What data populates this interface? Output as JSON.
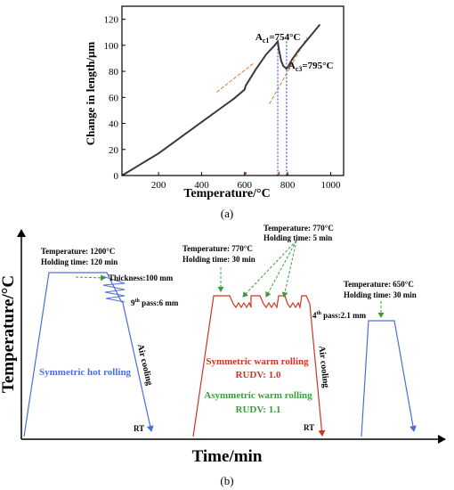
{
  "panel_a": {
    "label": "(a)",
    "chart_data": {
      "type": "line",
      "xlabel": "Temperature/°C",
      "ylabel": "Change in length/μm",
      "xlim": [
        30,
        1060
      ],
      "ylim": [
        0,
        130
      ],
      "xticks": [
        200,
        400,
        600,
        800,
        1000
      ],
      "yticks": [
        0,
        20,
        40,
        60,
        80,
        100,
        120
      ],
      "grid": false,
      "series": [
        {
          "x": [
            30,
            60,
            100,
            150,
            200,
            250,
            300,
            350,
            400,
            450,
            500,
            550,
            600,
            605,
            650,
            700,
            740,
            754,
            760,
            770,
            780,
            795,
            800,
            820,
            850,
            900,
            950
          ],
          "y": [
            0,
            3,
            7,
            12,
            17,
            23,
            29,
            35,
            41,
            47,
            53,
            59,
            66,
            69,
            81,
            93,
            100,
            103,
            96,
            88,
            84,
            82,
            83,
            89,
            96,
            106,
            116
          ]
        }
      ],
      "tangent_lines": [
        {
          "x": [
            470,
            640
          ],
          "y": [
            64,
            86
          ]
        },
        {
          "x": [
            715,
            890
          ],
          "y": [
            55,
            106
          ]
        }
      ],
      "vertical_markers": [
        754,
        795
      ],
      "red_marker_x": [
        605,
        760
      ],
      "annotations": [
        {
          "base": "A",
          "sub": "c1",
          "rest": "=754°C",
          "x": 650,
          "y": 104
        },
        {
          "base": "A",
          "sub": "c3",
          "rest": "=795°C",
          "x": 803,
          "y": 82
        }
      ]
    }
  },
  "panel_b": {
    "label": "(b)",
    "y_axis_label": "Temperature/°C",
    "x_axis_label": "Time/min",
    "hot": {
      "temp_line1": "Temperature: 1200°C",
      "temp_line2": "Holding time: 120 min",
      "thickness": "Thickness:100 mm",
      "pass_pre": "9",
      "pass_sup": "th",
      "pass_post": " pass:6 mm",
      "cooling": "Air cooling",
      "mode": "Symmetric hot rolling",
      "rt": "RT"
    },
    "warm": {
      "a_line1": "Temperature: 770°C",
      "a_line2": "Holding time: 30 min",
      "b_line1": "Temperature: 770°C",
      "b_line2": "Holding time: 5 min",
      "pass_pre": "4",
      "pass_sup": "th",
      "pass_post": " pass:2.1 mm",
      "cooling": "Air cooling",
      "sym_mode": "Symmetric warm rolling",
      "sym_rudv": "RUDV: 1.0",
      "asym_mode": "Asymmetric warm rolling",
      "asym_rudv": "RUDV: 1.1",
      "rt": "RT"
    },
    "anneal": {
      "line1": "Temperature: 650°C",
      "line2": "Holding time: 30 min"
    },
    "colors": {
      "hot": "#4a6fd8",
      "warm": "#d0341e",
      "green": "#3e9a3a",
      "anneal": "#4a6fd8"
    }
  }
}
